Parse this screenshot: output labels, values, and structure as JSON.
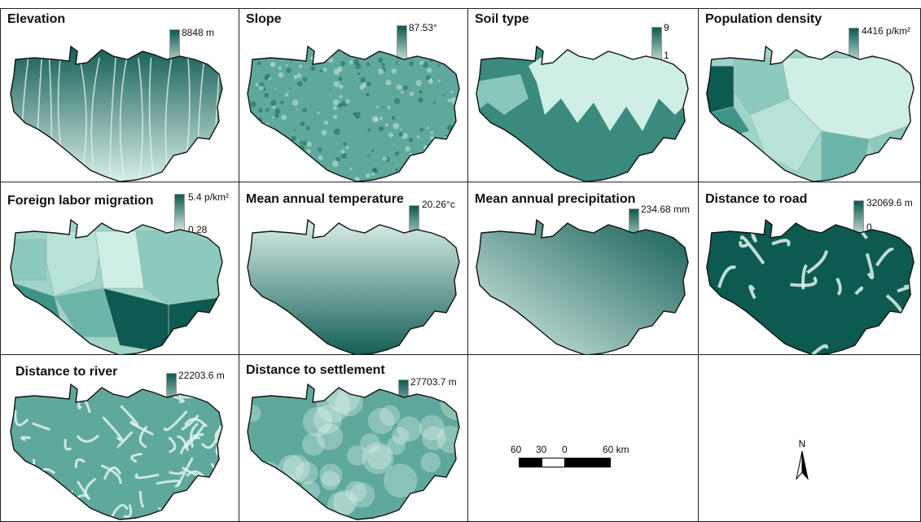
{
  "panels": [
    {
      "title": "Elevation",
      "max": "8848 m",
      "min": "96",
      "style": "elevation"
    },
    {
      "title": "Slope",
      "max": "87.53°",
      "min": "0",
      "style": "slope"
    },
    {
      "title": "Soil type",
      "max": "9",
      "min": "1",
      "style": "soil"
    },
    {
      "title": "Population density",
      "max": "4416 p/km²",
      "min": "28",
      "style": "population"
    },
    {
      "title": "Foreign labor migration",
      "max": "5.4 p/km²",
      "min": "0.28",
      "style": "migration"
    },
    {
      "title": "Mean annual temperature",
      "max": "20.26°c",
      "min": "0",
      "style": "temperature"
    },
    {
      "title": "Mean annual precipitation",
      "max": "234.68 mm",
      "min": "56.74",
      "style": "precipitation"
    },
    {
      "title": "Distance to road",
      "max": "32069.6 m",
      "min": "0",
      "style": "road"
    },
    {
      "title": "Distance to river",
      "max": "22203.6 m",
      "min": "0",
      "style": "river"
    },
    {
      "title": "Distance to settlement",
      "max": "27703.7 m",
      "min": "0",
      "style": "settlement"
    }
  ],
  "scale_bar": {
    "labels": [
      "60",
      "30",
      "0",
      "60 km"
    ]
  },
  "north_arrow": {
    "label": "N"
  },
  "colors": {
    "dark": "#0d5a50",
    "mid": "#5fa89c",
    "light": "#dff3ee",
    "border": "#222222"
  }
}
